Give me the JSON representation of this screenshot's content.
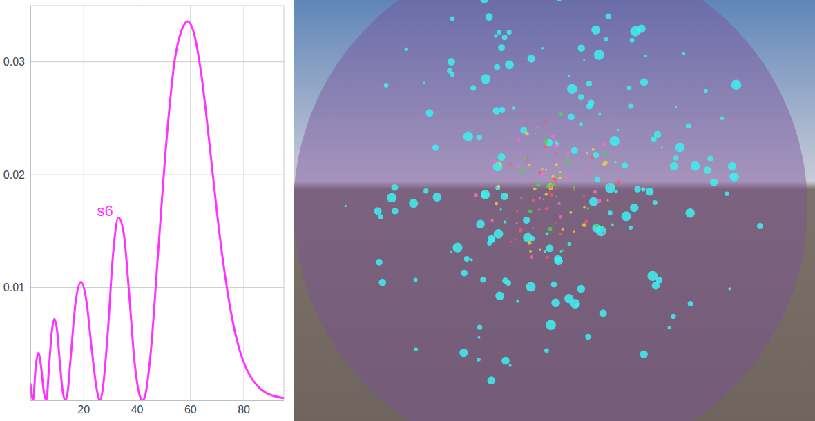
{
  "chart_data": {
    "type": "line",
    "x": [
      0,
      1,
      2,
      3,
      4,
      5,
      6,
      7,
      8,
      9,
      10,
      11,
      12,
      13,
      14,
      15,
      17,
      19,
      21,
      23,
      25,
      26,
      27,
      29,
      31,
      33,
      35,
      37,
      39,
      41,
      42,
      43,
      45,
      48,
      51,
      54,
      57,
      59,
      61,
      64,
      67,
      70,
      73,
      76,
      79,
      82,
      85,
      88,
      91,
      95
    ],
    "series": [
      {
        "color": "#ff33ff",
        "values": [
          0.0015,
          0.0,
          0.003,
          0.0042,
          0.003,
          0.0008,
          0.0,
          0.003,
          0.006,
          0.0072,
          0.0062,
          0.0035,
          0.001,
          0.0,
          0.0008,
          0.0035,
          0.0088,
          0.0105,
          0.0088,
          0.0045,
          0.0008,
          0.0,
          0.0008,
          0.006,
          0.013,
          0.0162,
          0.0148,
          0.0095,
          0.0035,
          0.0004,
          0.0,
          0.0004,
          0.004,
          0.0135,
          0.023,
          0.03,
          0.033,
          0.0336,
          0.0328,
          0.029,
          0.023,
          0.0165,
          0.011,
          0.0068,
          0.004,
          0.0023,
          0.0013,
          0.0007,
          0.0004,
          0.0002
        ]
      }
    ],
    "xlim": [
      0,
      95
    ],
    "xticks": [
      20,
      40,
      60,
      80
    ],
    "ylim": [
      0,
      0.035
    ],
    "yticks": [
      0.01,
      0.02,
      0.03
    ],
    "grid": true,
    "annotations": [
      {
        "text": "s6",
        "x": 28,
        "y": 0.0168
      }
    ]
  }
}
